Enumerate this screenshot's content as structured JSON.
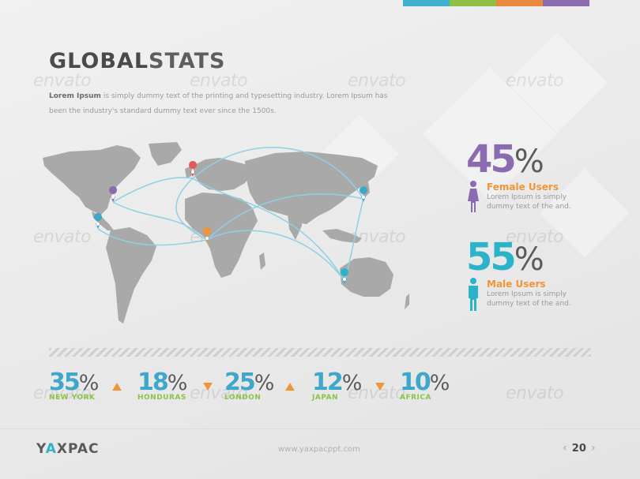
{
  "title": {
    "bold": "GLOBAL",
    "light": "STATS"
  },
  "intro": {
    "bold": "Lorem Ipsum",
    "text": " is simply dummy text of the printing and typesetting industry. Lorem Ipsum has been the industry's standard dummy text ever since the 1500s."
  },
  "watermark_text": "envato",
  "colors": {
    "purple": "#8a6bb0",
    "teal": "#2bb3c9",
    "orange": "#f0953a",
    "green": "#8bc34a",
    "blue": "#3fa7c9",
    "red": "#e05a5a",
    "route": "#8fd0e3",
    "land": "#a9a9a9"
  },
  "topbar_colors": [
    "#3fb0cf",
    "#8fbf47",
    "#e8893e",
    "#8a6bb0"
  ],
  "female": {
    "value": "45",
    "pct": "%",
    "label": "Female Users",
    "desc": "Lorem Ipsum is simply dummy text of the and."
  },
  "male": {
    "value": "55",
    "pct": "%",
    "label": "Male Users",
    "desc": "Lorem Ipsum is simply dummy text of the and."
  },
  "cities": [
    {
      "value": "35",
      "pct": "%",
      "name": "NEW YORK",
      "trend": "up"
    },
    {
      "value": "18",
      "pct": "%",
      "name": "HONDURAS",
      "trend": "down"
    },
    {
      "value": "25",
      "pct": "%",
      "name": "LONDON",
      "trend": "up"
    },
    {
      "value": "12",
      "pct": "%",
      "name": "JAPAN",
      "trend": "down"
    },
    {
      "value": "10",
      "pct": "%",
      "name": "AFRICA",
      "trend": "none"
    }
  ],
  "footer": {
    "brand_pre": "Y",
    "brand_a": "A",
    "brand_post": "XPAC",
    "url": "www.yaxpacppt.com",
    "page": "20"
  },
  "icons": [
    "female-icon",
    "male-icon",
    "map-pin-icon",
    "triangle-up-icon",
    "triangle-down-icon",
    "chevron-left-icon",
    "chevron-right-icon"
  ]
}
